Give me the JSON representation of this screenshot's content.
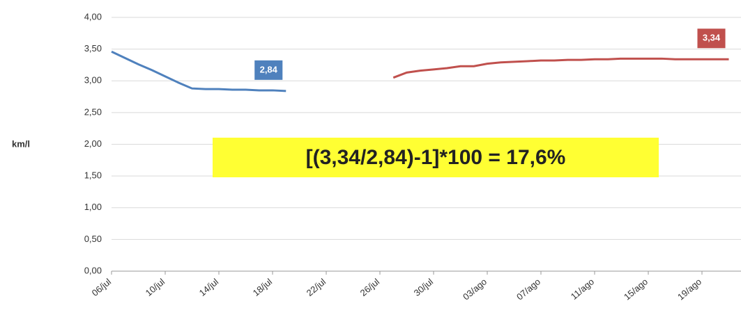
{
  "chart_data": {
    "type": "line",
    "ylabel": "km/l",
    "annotation": "[(3,34/2,84)-1]*100 = 17,6%",
    "categories": [
      "06/jul",
      null,
      null,
      null,
      "10/jul",
      null,
      null,
      null,
      "14/jul",
      null,
      null,
      null,
      "18/jul",
      null,
      null,
      null,
      "22/jul",
      null,
      null,
      null,
      "26/jul",
      null,
      null,
      null,
      "30/jul",
      null,
      null,
      null,
      "03/ago",
      null,
      null,
      null,
      "07/ago",
      null,
      null,
      null,
      "11/ago",
      null,
      null,
      null,
      "15/ago",
      null,
      null,
      null,
      "19/ago",
      null,
      null
    ],
    "series": [
      {
        "color": "#4f81bd",
        "values": [
          3.46,
          3.36,
          3.26,
          3.17,
          3.07,
          2.97,
          2.88,
          2.87,
          2.87,
          2.86,
          2.86,
          2.85,
          2.85,
          2.84,
          null,
          null,
          null,
          null,
          null,
          null,
          null,
          null,
          null,
          null,
          null,
          null,
          null,
          null,
          null,
          null,
          null,
          null,
          null,
          null,
          null,
          null,
          null,
          null,
          null,
          null,
          null,
          null,
          null,
          null,
          null,
          null,
          null
        ],
        "value_labels": [
          null,
          null,
          null,
          null,
          null,
          null,
          null,
          null,
          null,
          null,
          null,
          null,
          null,
          "2,84",
          null,
          null,
          null,
          null,
          null,
          null,
          null,
          null,
          null,
          null,
          null,
          null,
          null,
          null,
          null,
          null,
          null,
          null,
          null,
          null,
          null,
          null,
          null,
          null,
          null,
          null,
          null,
          null,
          null,
          null,
          null,
          null,
          null
        ]
      },
      {
        "color": "#c0504d",
        "values": [
          null,
          null,
          null,
          null,
          null,
          null,
          null,
          null,
          null,
          null,
          null,
          null,
          null,
          null,
          null,
          null,
          null,
          null,
          null,
          null,
          null,
          3.05,
          3.13,
          3.16,
          3.18,
          3.2,
          3.23,
          3.23,
          3.27,
          3.29,
          3.3,
          3.31,
          3.32,
          3.32,
          3.33,
          3.33,
          3.34,
          3.34,
          3.35,
          3.35,
          3.35,
          3.35,
          3.34,
          3.34,
          3.34,
          3.34,
          3.34
        ],
        "value_labels": [
          null,
          null,
          null,
          null,
          null,
          null,
          null,
          null,
          null,
          null,
          null,
          null,
          null,
          null,
          null,
          null,
          null,
          null,
          null,
          null,
          null,
          null,
          null,
          null,
          null,
          null,
          null,
          null,
          null,
          null,
          null,
          null,
          null,
          null,
          null,
          null,
          null,
          null,
          null,
          null,
          null,
          null,
          null,
          null,
          null,
          null,
          "3,34"
        ]
      }
    ],
    "ylim": [
      0,
      4
    ],
    "yticks": [
      {
        "value": 0,
        "label": "0,00"
      },
      {
        "value": 0.5,
        "label": "0,50"
      },
      {
        "value": 1,
        "label": "1,00"
      },
      {
        "value": 1.5,
        "label": "1,50"
      },
      {
        "value": 2,
        "label": "2,00"
      },
      {
        "value": 2.5,
        "label": "2,50"
      },
      {
        "value": 3,
        "label": "3,00"
      },
      {
        "value": 3.5,
        "label": "3,50"
      },
      {
        "value": 4,
        "label": "4,00"
      }
    ],
    "grid": true
  }
}
